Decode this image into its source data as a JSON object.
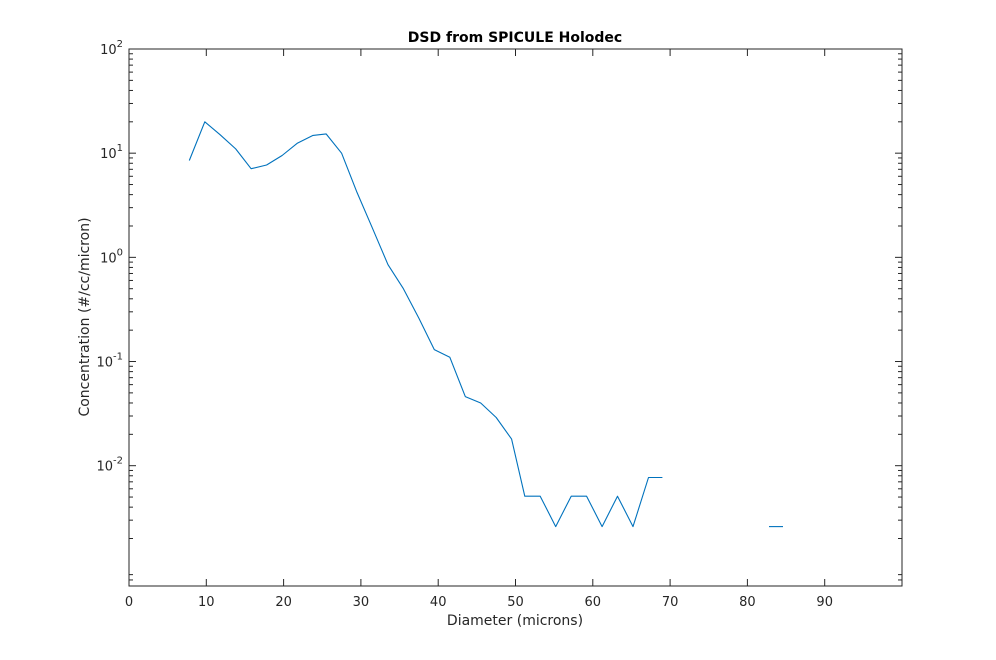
{
  "chart_data": {
    "type": "line",
    "title": "DSD from SPICULE Holodec",
    "xlabel": "Diameter (microns)",
    "ylabel": "Concentration (#/cc/micron)",
    "xlim": [
      0,
      100
    ],
    "ylim": [
      0.0007,
      100
    ],
    "yscale": "log",
    "grid": false,
    "x_ticks": [
      0,
      10,
      20,
      30,
      40,
      50,
      60,
      70,
      80,
      90
    ],
    "y_ticks": [
      {
        "value": 0.01,
        "base": "10",
        "exp": "-2"
      },
      {
        "value": 0.1,
        "base": "10",
        "exp": "-1"
      },
      {
        "value": 1,
        "base": "10",
        "exp": "0"
      },
      {
        "value": 10,
        "base": "10",
        "exp": "1"
      },
      {
        "value": 100,
        "base": "10",
        "exp": "2"
      }
    ],
    "series": [
      {
        "color": "#0072BD",
        "segments": [
          [
            [
              7.8,
              8.5
            ],
            [
              9.8,
              20
            ],
            [
              11.8,
              15
            ],
            [
              13.8,
              11
            ],
            [
              15.8,
              7.1
            ],
            [
              17.8,
              7.7
            ],
            [
              19.8,
              9.5
            ],
            [
              21.8,
              12.5
            ],
            [
              23.8,
              14.8
            ],
            [
              25.5,
              15.3
            ],
            [
              27.5,
              10
            ],
            [
              29.5,
              4.2
            ],
            [
              31.5,
              1.9
            ],
            [
              33.5,
              0.85
            ],
            [
              35.5,
              0.5
            ],
            [
              37.5,
              0.26
            ],
            [
              39.5,
              0.13
            ],
            [
              41.5,
              0.11
            ],
            [
              43.5,
              0.046
            ],
            [
              45.5,
              0.04
            ],
            [
              47.5,
              0.029
            ],
            [
              49.5,
              0.018
            ],
            [
              51.2,
              0.0051
            ],
            [
              53.2,
              0.0051
            ],
            [
              55.2,
              0.0026
            ],
            [
              57.2,
              0.0051
            ],
            [
              59.2,
              0.0051
            ],
            [
              61.2,
              0.0026
            ],
            [
              63.2,
              0.0051
            ],
            [
              65.2,
              0.0026
            ],
            [
              67.2,
              0.0077
            ],
            [
              69,
              0.0077
            ]
          ],
          [
            [
              82.8,
              0.0026
            ],
            [
              84.6,
              0.0026
            ]
          ]
        ]
      }
    ]
  }
}
